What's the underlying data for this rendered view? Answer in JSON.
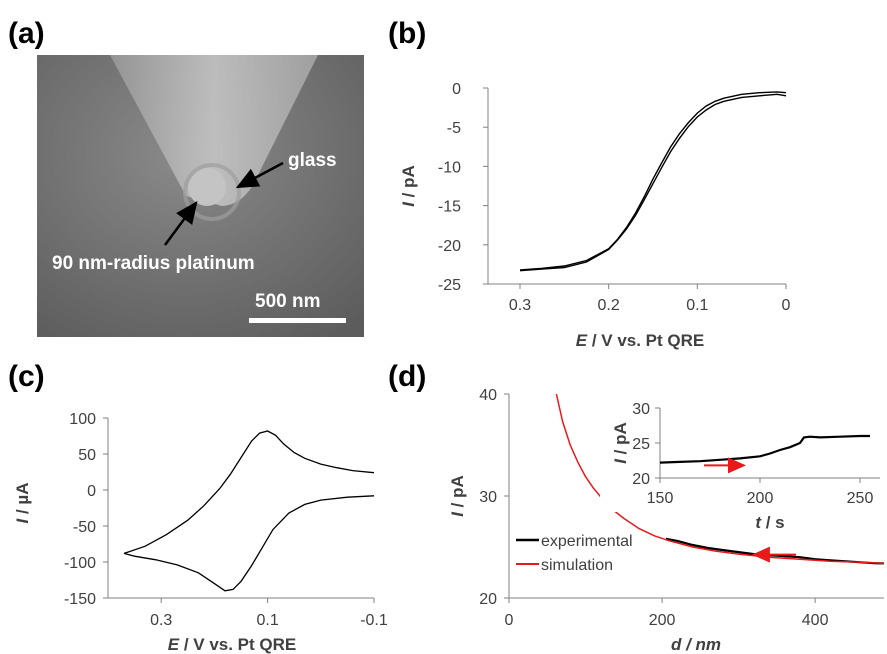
{
  "panels": {
    "a": {
      "label": "(a)",
      "glass_label": "glass",
      "pt_label": "90 nm-radius platinum",
      "scale_bar_label": "500 nm"
    },
    "b": {
      "label": "(b)"
    },
    "c": {
      "label": "(c)"
    },
    "d": {
      "label": "(d)"
    }
  },
  "colors": {
    "experimental": "#000000",
    "simulation": "#e8191b",
    "axis": "#808080",
    "sem_background": "#707070"
  },
  "chart_data": [
    {
      "id": "b",
      "type": "line",
      "xlabel_italic": "E",
      "xlabel_rest": " / V vs. Pt QRE",
      "ylabel_italic": "I",
      "ylabel_rest": " / pA",
      "xlim": [
        0.3,
        0
      ],
      "ylim": [
        -25,
        0
      ],
      "x_ticks": [
        "0.3",
        "0.2",
        "0.1",
        "0"
      ],
      "y_ticks": [
        "0",
        "-5",
        "-10",
        "-15",
        "-20",
        "-25"
      ],
      "series": [
        {
          "x": [
            0.3,
            0.275,
            0.25,
            0.225,
            0.2,
            0.19,
            0.18,
            0.17,
            0.16,
            0.15,
            0.14,
            0.13,
            0.12,
            0.11,
            0.1,
            0.09,
            0.08,
            0.07,
            0.05,
            0.03,
            0.01,
            0.0
          ],
          "y": [
            -23.2,
            -23.0,
            -22.7,
            -22.0,
            -20.5,
            -19.3,
            -17.8,
            -16.0,
            -13.9,
            -11.6,
            -9.5,
            -7.5,
            -5.8,
            -4.4,
            -3.2,
            -2.3,
            -1.7,
            -1.3,
            -0.8,
            -0.6,
            -0.5,
            -0.6
          ]
        },
        {
          "x": [
            0.0,
            0.01,
            0.03,
            0.05,
            0.07,
            0.08,
            0.09,
            0.1,
            0.11,
            0.12,
            0.13,
            0.14,
            0.15,
            0.16,
            0.17,
            0.18,
            0.19,
            0.2,
            0.225,
            0.25,
            0.275,
            0.3
          ],
          "y": [
            -1.0,
            -0.8,
            -1.0,
            -1.2,
            -1.7,
            -2.1,
            -2.8,
            -3.7,
            -4.9,
            -6.4,
            -8.1,
            -10.1,
            -12.2,
            -14.3,
            -16.3,
            -18.0,
            -19.4,
            -20.6,
            -22.2,
            -22.9,
            -23.1,
            -23.3
          ]
        }
      ]
    },
    {
      "id": "c",
      "type": "line",
      "xlabel_italic": "E",
      "xlabel_rest": " / V vs. Pt QRE",
      "ylabel_italic": "I",
      "ylabel_rest": " / µA",
      "xlim": [
        0.4,
        -0.1
      ],
      "ylim": [
        -150,
        100
      ],
      "x_ticks": [
        "0.3",
        "0.1",
        "-0.1"
      ],
      "y_ticks": [
        "100",
        "50",
        "0",
        "-50",
        "-100",
        "-150"
      ],
      "series": [
        {
          "x": [
            0.37,
            0.33,
            0.29,
            0.25,
            0.22,
            0.19,
            0.17,
            0.15,
            0.13,
            0.115,
            0.1,
            0.085,
            0.07,
            0.05,
            0.03,
            0.0,
            -0.03,
            -0.06,
            -0.1
          ],
          "y": [
            -88,
            -78,
            -62,
            -42,
            -22,
            2,
            22,
            45,
            68,
            79,
            82,
            76,
            64,
            52,
            44,
            36,
            31,
            27,
            24
          ]
        },
        {
          "x": [
            -0.1,
            -0.05,
            0.0,
            0.03,
            0.06,
            0.09,
            0.11,
            0.13,
            0.15,
            0.165,
            0.18,
            0.2,
            0.23,
            0.27,
            0.31,
            0.35,
            0.37
          ],
          "y": [
            -8,
            -10,
            -14,
            -20,
            -32,
            -55,
            -80,
            -105,
            -127,
            -138,
            -140,
            -130,
            -115,
            -104,
            -97,
            -92,
            -88
          ]
        }
      ]
    },
    {
      "id": "d",
      "type": "line",
      "xlabel_italic": "d / nm",
      "ylabel_italic": "I",
      "ylabel_rest": " / pA",
      "xlim": [
        0,
        490
      ],
      "ylim": [
        20,
        40
      ],
      "x_ticks": [
        "0",
        "200",
        "400"
      ],
      "y_ticks": [
        "40",
        "30",
        "20"
      ],
      "legend": [
        "experimental",
        "simulation"
      ],
      "series": [
        {
          "name": "simulation",
          "x": [
            62,
            70,
            80,
            90,
            100,
            110,
            120,
            135,
            150,
            170,
            190,
            210,
            240,
            270,
            300,
            340,
            380,
            420,
            460,
            490
          ],
          "y": [
            40,
            37.3,
            35.0,
            33.3,
            31.9,
            30.8,
            29.9,
            28.7,
            27.8,
            26.8,
            26.1,
            25.6,
            25.0,
            24.6,
            24.3,
            24.0,
            23.8,
            23.6,
            23.5,
            23.4
          ]
        },
        {
          "name": "experimental",
          "x": [
            205,
            220,
            240,
            260,
            280,
            300,
            320,
            340,
            360,
            380,
            400,
            420,
            440,
            460,
            480,
            490
          ],
          "y": [
            25.8,
            25.6,
            25.2,
            24.9,
            24.7,
            24.5,
            24.3,
            24.2,
            24.1,
            24.0,
            23.8,
            23.7,
            23.6,
            23.5,
            23.4,
            23.4
          ]
        }
      ],
      "inset": {
        "xlabel_italic": "t",
        "xlabel_rest": " / s",
        "ylabel_italic": "I",
        "ylabel_rest": " / pA",
        "xlim": [
          150,
          260
        ],
        "ylim": [
          20,
          30
        ],
        "x_ticks": [
          "150",
          "200",
          "250"
        ],
        "y_ticks": [
          "30",
          "25",
          "20"
        ],
        "series": [
          {
            "x": [
              150,
              160,
              170,
              180,
              190,
              200,
              205,
              210,
              215,
              220,
              222,
              225,
              230,
              240,
              250,
              255
            ],
            "y": [
              22.2,
              22.3,
              22.4,
              22.6,
              22.8,
              23.1,
              23.5,
              24.0,
              24.4,
              25.0,
              25.8,
              25.9,
              25.8,
              25.9,
              26.0,
              26.0
            ]
          }
        ]
      }
    }
  ]
}
